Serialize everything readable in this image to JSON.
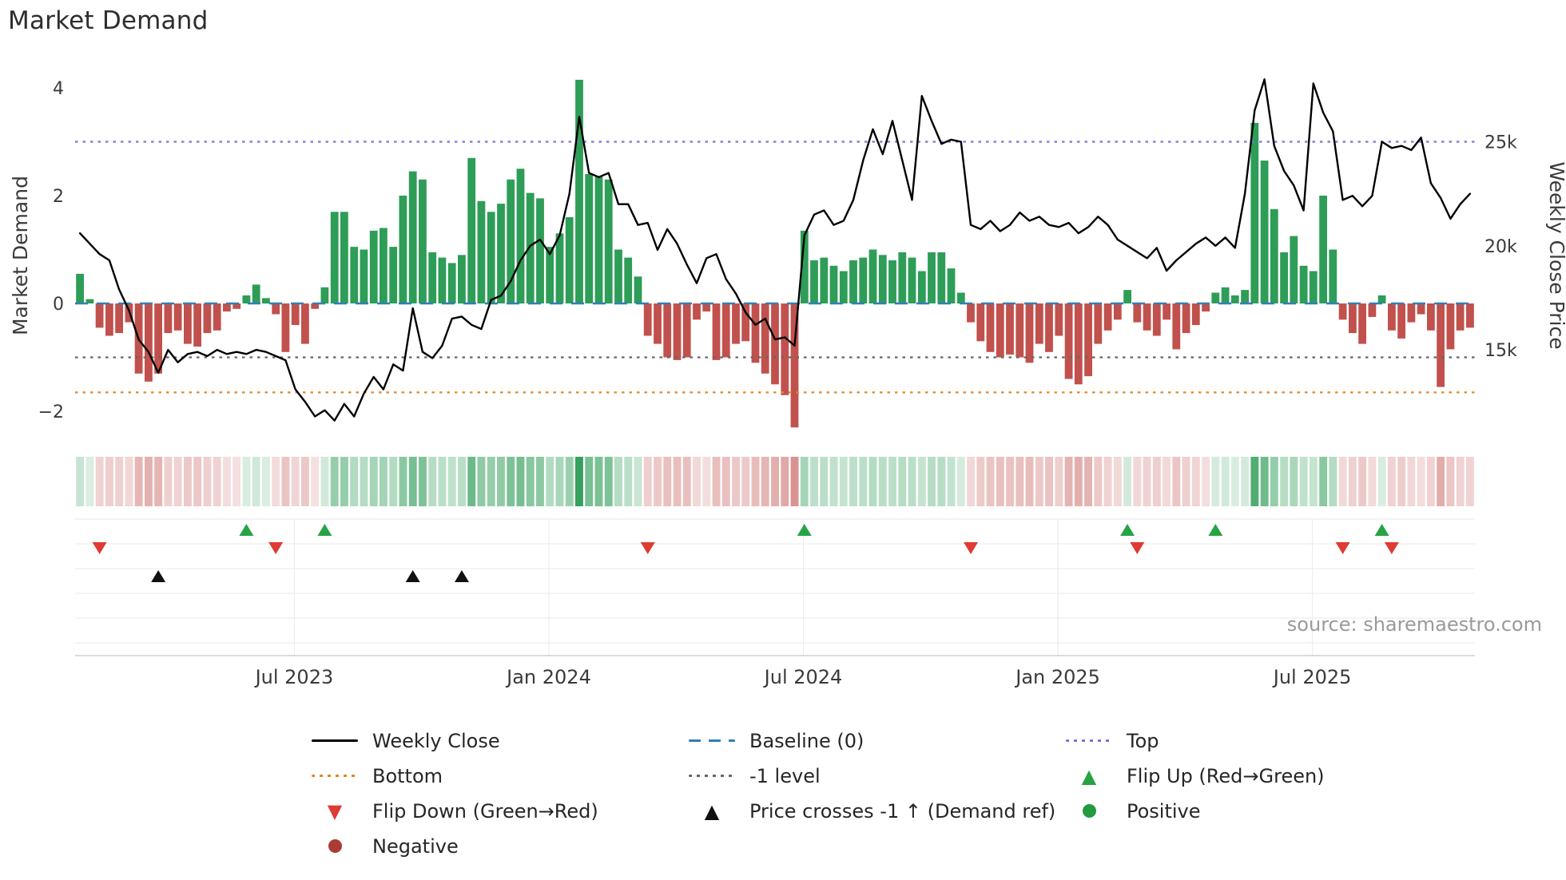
{
  "title": "Market Demand",
  "source_text": "source: sharemaestro.com",
  "axes": {
    "left_label": "Market Demand",
    "right_label": "Weekly Close Price",
    "left_ticks": [
      {
        "value": 4,
        "label": "4"
      },
      {
        "value": 2,
        "label": "2"
      },
      {
        "value": 0,
        "label": "0"
      },
      {
        "value": -2,
        "label": "−2"
      }
    ],
    "right_ticks": [
      {
        "value_k": 25,
        "label": "25k"
      },
      {
        "value_k": 20,
        "label": "20k"
      },
      {
        "value_k": 15,
        "label": "15k"
      }
    ],
    "x_ticks": [
      {
        "week": 21.9,
        "label": "Jul 2023"
      },
      {
        "week": 47.9,
        "label": "Jan 2024"
      },
      {
        "week": 73.9,
        "label": "Jul 2024"
      },
      {
        "week": 99.9,
        "label": "Jan 2025"
      },
      {
        "week": 125.9,
        "label": "Jul 2025"
      }
    ]
  },
  "colors": {
    "positive_bar": "#2e9d57",
    "negative_bar": "#c1514d",
    "price_line": "#000000",
    "baseline": "#2f7fb8",
    "top_line": "#7b74dd",
    "bottom_line": "#e5862b",
    "minus1_line": "#666666",
    "flip_up": "#27a344",
    "flip_down": "#dd3b33",
    "price_cross": "#111111",
    "positive_dot": "#229a3d",
    "negative_dot": "#a93c34",
    "grid_light": "#ededed",
    "axis_line": "#cfcfcf"
  },
  "chart_data": {
    "type": "mixed",
    "x_unit": "week",
    "n_weeks": 143,
    "series": [
      {
        "name": "Market Demand",
        "type": "bar",
        "axis": "left",
        "values": [
          0.55,
          0.08,
          -0.45,
          -0.6,
          -0.55,
          -0.35,
          -1.3,
          -1.45,
          -1.3,
          -0.55,
          -0.5,
          -0.75,
          -0.8,
          -0.55,
          -0.5,
          -0.15,
          -0.1,
          0.15,
          0.35,
          0.1,
          -0.2,
          -0.9,
          -0.4,
          -0.75,
          -0.1,
          0.3,
          1.7,
          1.7,
          1.05,
          1.0,
          1.35,
          1.4,
          1.05,
          2.0,
          2.45,
          2.3,
          0.95,
          0.85,
          0.75,
          0.9,
          2.7,
          1.9,
          1.7,
          1.85,
          2.3,
          2.5,
          2.05,
          1.95,
          1.05,
          1.3,
          1.6,
          4.15,
          2.4,
          2.35,
          2.3,
          1.0,
          0.85,
          0.5,
          -0.6,
          -0.75,
          -1.0,
          -1.05,
          -1.0,
          -0.3,
          -0.15,
          -1.05,
          -1.0,
          -0.75,
          -0.7,
          -1.1,
          -1.3,
          -1.5,
          -1.7,
          -2.3,
          1.35,
          0.8,
          0.85,
          0.7,
          0.6,
          0.8,
          0.85,
          1.0,
          0.9,
          0.8,
          0.95,
          0.85,
          0.6,
          0.95,
          0.95,
          0.65,
          0.2,
          -0.35,
          -0.7,
          -0.9,
          -1.0,
          -0.95,
          -1.0,
          -1.1,
          -0.75,
          -0.9,
          -0.6,
          -1.4,
          -1.5,
          -1.35,
          -0.75,
          -0.5,
          -0.3,
          0.25,
          -0.35,
          -0.5,
          -0.6,
          -0.3,
          -0.85,
          -0.55,
          -0.4,
          -0.15,
          0.2,
          0.3,
          0.15,
          0.25,
          3.35,
          2.65,
          1.75,
          0.95,
          1.25,
          0.7,
          0.6,
          2.0,
          1.0,
          -0.3,
          -0.55,
          -0.75,
          -0.25,
          0.15,
          -0.5,
          -0.65,
          -0.35,
          -0.2,
          -0.5,
          -1.55,
          -0.85,
          -0.5,
          -0.45
        ]
      },
      {
        "name": "Weekly Close",
        "type": "line",
        "axis": "right_price_k",
        "values": [
          20.6,
          20.1,
          19.6,
          19.3,
          17.9,
          16.9,
          15.5,
          14.9,
          13.9,
          15.0,
          14.4,
          14.8,
          14.9,
          14.7,
          15.0,
          14.8,
          14.9,
          14.8,
          15.0,
          14.9,
          14.7,
          14.5,
          13.1,
          12.5,
          11.8,
          12.1,
          11.6,
          12.4,
          11.8,
          12.9,
          13.7,
          13.1,
          14.3,
          14.0,
          17.0,
          14.9,
          14.6,
          15.2,
          16.5,
          16.6,
          16.2,
          16.0,
          17.4,
          17.6,
          18.3,
          19.3,
          20.0,
          20.3,
          19.6,
          20.5,
          22.5,
          26.2,
          23.5,
          23.3,
          23.5,
          22.0,
          22.0,
          21.0,
          21.1,
          19.8,
          20.8,
          20.1,
          19.1,
          18.2,
          19.4,
          19.6,
          18.4,
          17.7,
          16.8,
          16.2,
          16.5,
          15.5,
          15.6,
          15.2,
          20.5,
          21.5,
          21.7,
          21.0,
          21.2,
          22.2,
          24.1,
          25.6,
          24.4,
          26.0,
          24.1,
          22.2,
          27.2,
          26.0,
          24.9,
          25.1,
          25.0,
          21.0,
          20.8,
          21.2,
          20.7,
          21.0,
          21.6,
          21.2,
          21.4,
          21.0,
          20.9,
          21.1,
          20.6,
          20.9,
          21.4,
          21.0,
          20.3,
          20.0,
          19.7,
          19.4,
          19.9,
          18.8,
          19.3,
          19.7,
          20.1,
          20.4,
          20.0,
          20.4,
          19.9,
          22.5,
          26.5,
          28.0,
          24.8,
          23.6,
          22.9,
          21.7,
          27.8,
          26.4,
          25.5,
          22.2,
          22.4,
          21.9,
          22.4,
          25.0,
          24.7,
          24.8,
          24.6,
          25.2,
          23.0,
          22.3,
          21.3,
          22.0,
          22.5
        ]
      }
    ],
    "reference_lines": [
      {
        "id": "top",
        "name": "Top",
        "value": 3,
        "style": "dotted",
        "color": "#7b74dd"
      },
      {
        "id": "baseline",
        "name": "Baseline (0)",
        "value": 0,
        "style": "dashed",
        "color": "#2f7fb8"
      },
      {
        "id": "minus1",
        "name": "-1 level",
        "value": -1,
        "style": "dotted",
        "color": "#666666"
      },
      {
        "id": "bottom",
        "name": "Bottom",
        "value": -1.65,
        "style": "dotted",
        "color": "#e5862b"
      }
    ],
    "ylim_left": [
      -2.52,
      4.33
    ],
    "markers": {
      "flip_up_weeks": [
        17,
        25,
        74,
        107,
        116,
        133
      ],
      "flip_down_weeks": [
        2,
        20,
        58,
        91,
        108,
        129,
        134
      ],
      "price_cross_weeks": [
        8,
        34,
        39
      ]
    },
    "heatmap": {
      "derived_from": "Market Demand",
      "rows": 1
    }
  },
  "legend": {
    "items": [
      {
        "label": "Weekly Close",
        "swatch": "line",
        "style": "solid",
        "color": "#000000"
      },
      {
        "label": "Baseline (0)",
        "swatch": "line",
        "style": "dashed",
        "color": "#2f7fb8"
      },
      {
        "label": "Top",
        "swatch": "line",
        "style": "dotted",
        "color": "#7b74dd"
      },
      {
        "label": "Bottom",
        "swatch": "line",
        "style": "dotted",
        "color": "#e5862b"
      },
      {
        "label": "-1 level",
        "swatch": "line",
        "style": "dotted",
        "color": "#666666"
      },
      {
        "label": "Flip Up (Red→Green)",
        "swatch": "triangle-up",
        "color": "#27a344"
      },
      {
        "label": "Flip Down (Green→Red)",
        "swatch": "triangle-down",
        "color": "#dd3b33"
      },
      {
        "label": "Price crosses -1 ↑ (Demand ref)",
        "swatch": "triangle-up",
        "color": "#111111"
      },
      {
        "label": "Positive",
        "swatch": "dot",
        "color": "#229a3d"
      },
      {
        "label": "Negative",
        "swatch": "dot",
        "color": "#a93c34"
      }
    ]
  }
}
